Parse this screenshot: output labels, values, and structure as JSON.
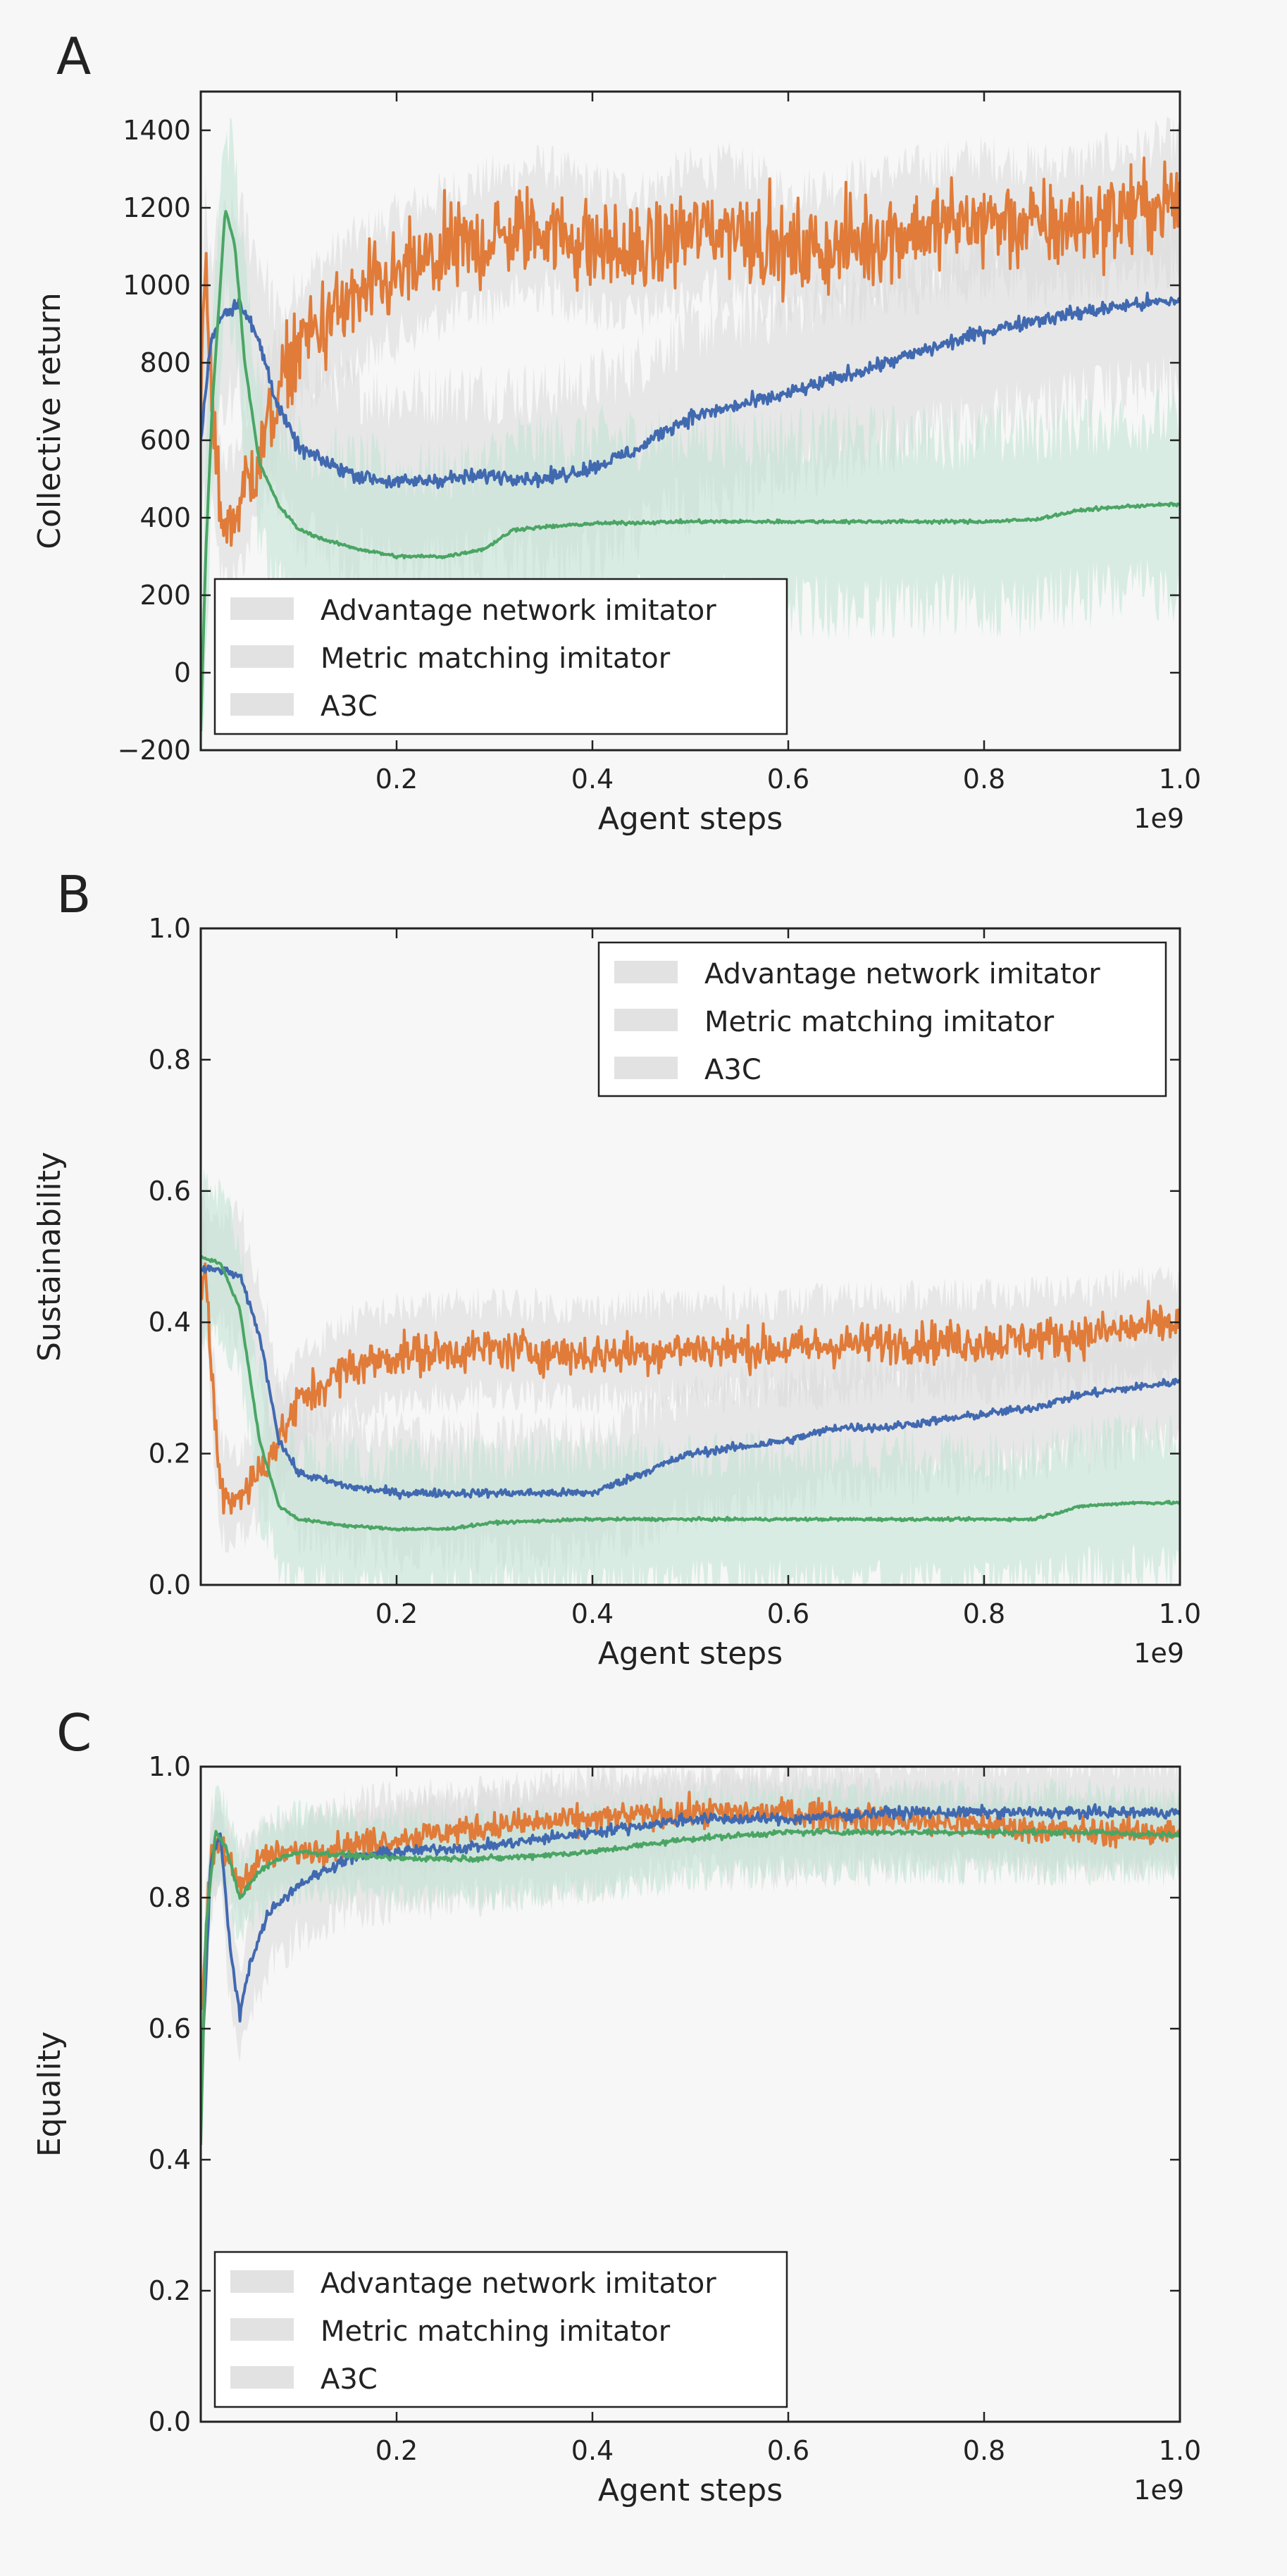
{
  "figure": {
    "x_offset_label": "1e9"
  },
  "chart_data": [
    {
      "panel": "A",
      "type": "line",
      "xlabel": "Agent steps",
      "ylabel": "Collective return",
      "xlim": [
        0,
        1.0
      ],
      "ylim": [
        -200,
        1500
      ],
      "xticks": [
        "0.2",
        "0.4",
        "0.6",
        "0.8",
        "1.0"
      ],
      "yticks": [
        "−200",
        "0",
        "200",
        "400",
        "600",
        "800",
        "1000",
        "1200",
        "1400"
      ],
      "legend_position": "lower left",
      "series": [
        {
          "name": "Advantage network imitator",
          "color": "#e07b39",
          "noise": 110,
          "band": 160,
          "points": [
            [
              0,
              700
            ],
            [
              0.005,
              1050
            ],
            [
              0.012,
              650
            ],
            [
              0.02,
              420
            ],
            [
              0.03,
              380
            ],
            [
              0.05,
              500
            ],
            [
              0.08,
              720
            ],
            [
              0.1,
              850
            ],
            [
              0.15,
              950
            ],
            [
              0.2,
              1020
            ],
            [
              0.25,
              1080
            ],
            [
              0.3,
              1120
            ],
            [
              0.35,
              1150
            ],
            [
              0.4,
              1100
            ],
            [
              0.45,
              1080
            ],
            [
              0.5,
              1140
            ],
            [
              0.55,
              1150
            ],
            [
              0.6,
              1080
            ],
            [
              0.65,
              1100
            ],
            [
              0.7,
              1130
            ],
            [
              0.75,
              1150
            ],
            [
              0.8,
              1170
            ],
            [
              0.85,
              1150
            ],
            [
              0.9,
              1160
            ],
            [
              0.95,
              1190
            ],
            [
              1.0,
              1220
            ]
          ]
        },
        {
          "name": "Metric matching imitator",
          "color": "#4169b0",
          "noise": 18,
          "band": 220,
          "points": [
            [
              0,
              600
            ],
            [
              0.01,
              850
            ],
            [
              0.02,
              920
            ],
            [
              0.04,
              960
            ],
            [
              0.06,
              850
            ],
            [
              0.08,
              680
            ],
            [
              0.1,
              580
            ],
            [
              0.13,
              540
            ],
            [
              0.16,
              510
            ],
            [
              0.2,
              490
            ],
            [
              0.25,
              500
            ],
            [
              0.3,
              510
            ],
            [
              0.35,
              500
            ],
            [
              0.4,
              530
            ],
            [
              0.45,
              580
            ],
            [
              0.47,
              620
            ],
            [
              0.5,
              660
            ],
            [
              0.55,
              690
            ],
            [
              0.6,
              720
            ],
            [
              0.65,
              760
            ],
            [
              0.7,
              800
            ],
            [
              0.75,
              840
            ],
            [
              0.8,
              880
            ],
            [
              0.85,
              910
            ],
            [
              0.9,
              930
            ],
            [
              0.95,
              950
            ],
            [
              1.0,
              960
            ]
          ]
        },
        {
          "name": "A3C",
          "color": "#4aa564",
          "noise": 4,
          "band": 220,
          "points": [
            [
              0,
              -150
            ],
            [
              0.005,
              300
            ],
            [
              0.012,
              700
            ],
            [
              0.02,
              1000
            ],
            [
              0.025,
              1200
            ],
            [
              0.035,
              1100
            ],
            [
              0.045,
              800
            ],
            [
              0.06,
              540
            ],
            [
              0.08,
              430
            ],
            [
              0.1,
              370
            ],
            [
              0.13,
              340
            ],
            [
              0.16,
              320
            ],
            [
              0.2,
              300
            ],
            [
              0.25,
              300
            ],
            [
              0.29,
              320
            ],
            [
              0.32,
              370
            ],
            [
              0.4,
              385
            ],
            [
              0.5,
              390
            ],
            [
              0.6,
              390
            ],
            [
              0.7,
              390
            ],
            [
              0.8,
              390
            ],
            [
              0.85,
              395
            ],
            [
              0.9,
              420
            ],
            [
              0.95,
              430
            ],
            [
              1.0,
              435
            ]
          ]
        }
      ]
    },
    {
      "panel": "B",
      "type": "line",
      "xlabel": "Agent steps",
      "ylabel": "Sustainability",
      "xlim": [
        0,
        1.0
      ],
      "ylim": [
        0,
        1.0
      ],
      "xticks": [
        "0.2",
        "0.4",
        "0.6",
        "0.8",
        "1.0"
      ],
      "yticks": [
        "0.0",
        "0.2",
        "0.4",
        "0.6",
        "0.8",
        "1.0"
      ],
      "legend_position": "upper right",
      "series": [
        {
          "name": "Advantage network imitator",
          "color": "#e07b39",
          "noise": 0.03,
          "band": 0.07,
          "points": [
            [
              0,
              0.45
            ],
            [
              0.005,
              0.48
            ],
            [
              0.012,
              0.3
            ],
            [
              0.02,
              0.15
            ],
            [
              0.03,
              0.13
            ],
            [
              0.05,
              0.15
            ],
            [
              0.08,
              0.22
            ],
            [
              0.1,
              0.28
            ],
            [
              0.15,
              0.33
            ],
            [
              0.2,
              0.35
            ],
            [
              0.3,
              0.36
            ],
            [
              0.4,
              0.35
            ],
            [
              0.5,
              0.36
            ],
            [
              0.6,
              0.36
            ],
            [
              0.7,
              0.37
            ],
            [
              0.8,
              0.37
            ],
            [
              0.9,
              0.38
            ],
            [
              0.95,
              0.39
            ],
            [
              1.0,
              0.4
            ]
          ]
        },
        {
          "name": "Metric matching imitator",
          "color": "#4169b0",
          "noise": 0.006,
          "band": 0.09,
          "points": [
            [
              0,
              0.48
            ],
            [
              0.02,
              0.48
            ],
            [
              0.04,
              0.47
            ],
            [
              0.06,
              0.38
            ],
            [
              0.08,
              0.22
            ],
            [
              0.1,
              0.17
            ],
            [
              0.15,
              0.15
            ],
            [
              0.2,
              0.14
            ],
            [
              0.3,
              0.14
            ],
            [
              0.35,
              0.14
            ],
            [
              0.4,
              0.14
            ],
            [
              0.45,
              0.17
            ],
            [
              0.5,
              0.2
            ],
            [
              0.55,
              0.21
            ],
            [
              0.6,
              0.22
            ],
            [
              0.65,
              0.24
            ],
            [
              0.7,
              0.24
            ],
            [
              0.75,
              0.25
            ],
            [
              0.8,
              0.26
            ],
            [
              0.85,
              0.27
            ],
            [
              0.9,
              0.29
            ],
            [
              0.95,
              0.3
            ],
            [
              1.0,
              0.31
            ]
          ]
        },
        {
          "name": "A3C",
          "color": "#4aa564",
          "noise": 0.002,
          "band": 0.1,
          "points": [
            [
              0,
              0.5
            ],
            [
              0.02,
              0.49
            ],
            [
              0.04,
              0.42
            ],
            [
              0.06,
              0.22
            ],
            [
              0.08,
              0.12
            ],
            [
              0.1,
              0.1
            ],
            [
              0.15,
              0.09
            ],
            [
              0.2,
              0.085
            ],
            [
              0.25,
              0.085
            ],
            [
              0.3,
              0.095
            ],
            [
              0.4,
              0.1
            ],
            [
              0.6,
              0.1
            ],
            [
              0.8,
              0.1
            ],
            [
              0.85,
              0.1
            ],
            [
              0.9,
              0.12
            ],
            [
              0.95,
              0.125
            ],
            [
              1.0,
              0.125
            ]
          ]
        }
      ]
    },
    {
      "panel": "C",
      "type": "line",
      "xlabel": "Agent steps",
      "ylabel": "Equality",
      "xlim": [
        0,
        1.0
      ],
      "ylim": [
        0,
        1.0
      ],
      "xticks": [
        "0.2",
        "0.4",
        "0.6",
        "0.8",
        "1.0"
      ],
      "yticks": [
        "0.0",
        "0.2",
        "0.4",
        "0.6",
        "0.8",
        "1.0"
      ],
      "legend_position": "lower left",
      "series": [
        {
          "name": "Advantage network imitator",
          "color": "#e07b39",
          "noise": 0.02,
          "band": 0.05,
          "points": [
            [
              0,
              0.62
            ],
            [
              0.01,
              0.85
            ],
            [
              0.02,
              0.88
            ],
            [
              0.04,
              0.82
            ],
            [
              0.06,
              0.86
            ],
            [
              0.1,
              0.87
            ],
            [
              0.15,
              0.88
            ],
            [
              0.2,
              0.89
            ],
            [
              0.3,
              0.91
            ],
            [
              0.4,
              0.92
            ],
            [
              0.5,
              0.93
            ],
            [
              0.6,
              0.93
            ],
            [
              0.7,
              0.92
            ],
            [
              0.8,
              0.91
            ],
            [
              0.9,
              0.9
            ],
            [
              1.0,
              0.9
            ]
          ]
        },
        {
          "name": "Metric matching imitator",
          "color": "#4169b0",
          "noise": 0.008,
          "band": 0.08,
          "points": [
            [
              0,
              0.5
            ],
            [
              0.01,
              0.85
            ],
            [
              0.02,
              0.9
            ],
            [
              0.03,
              0.72
            ],
            [
              0.04,
              0.62
            ],
            [
              0.05,
              0.7
            ],
            [
              0.07,
              0.78
            ],
            [
              0.1,
              0.82
            ],
            [
              0.15,
              0.86
            ],
            [
              0.2,
              0.87
            ],
            [
              0.3,
              0.88
            ],
            [
              0.4,
              0.9
            ],
            [
              0.45,
              0.91
            ],
            [
              0.5,
              0.92
            ],
            [
              0.6,
              0.92
            ],
            [
              0.7,
              0.93
            ],
            [
              0.8,
              0.93
            ],
            [
              0.9,
              0.93
            ],
            [
              1.0,
              0.93
            ]
          ]
        },
        {
          "name": "A3C",
          "color": "#4aa564",
          "noise": 0.004,
          "band": 0.06,
          "points": [
            [
              0,
              0.42
            ],
            [
              0.005,
              0.75
            ],
            [
              0.015,
              0.9
            ],
            [
              0.025,
              0.88
            ],
            [
              0.04,
              0.8
            ],
            [
              0.06,
              0.84
            ],
            [
              0.08,
              0.86
            ],
            [
              0.1,
              0.87
            ],
            [
              0.2,
              0.86
            ],
            [
              0.3,
              0.86
            ],
            [
              0.4,
              0.87
            ],
            [
              0.5,
              0.89
            ],
            [
              0.6,
              0.9
            ],
            [
              0.7,
              0.9
            ],
            [
              0.8,
              0.9
            ],
            [
              0.9,
              0.9
            ],
            [
              1.0,
              0.895
            ]
          ]
        }
      ]
    }
  ]
}
